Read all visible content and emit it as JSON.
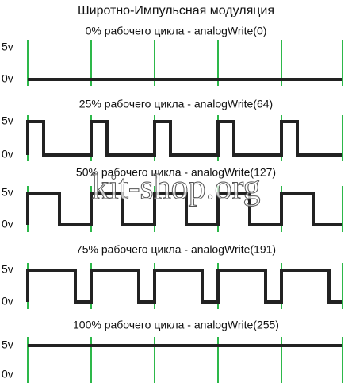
{
  "title": "Широтно-Импульсная модуляция",
  "watermark": "kit-shop.org",
  "panels": [
    {
      "label": "0% рабочего цикла - analogWrite(0)",
      "high": "5v",
      "low": "0v"
    },
    {
      "label": "25% рабочего цикла - analogWrite(64)",
      "high": "5v",
      "low": "0v"
    },
    {
      "label": "50% рабочего цикла - analogWrite(127)",
      "high": "5v",
      "low": "0v"
    },
    {
      "label": "75% рабочего цикла - analogWrite(191)",
      "high": "5v",
      "low": "0v"
    },
    {
      "label": "100% рабочего цикла - analogWrite(255)",
      "high": "5v",
      "low": "0v"
    }
  ]
}
